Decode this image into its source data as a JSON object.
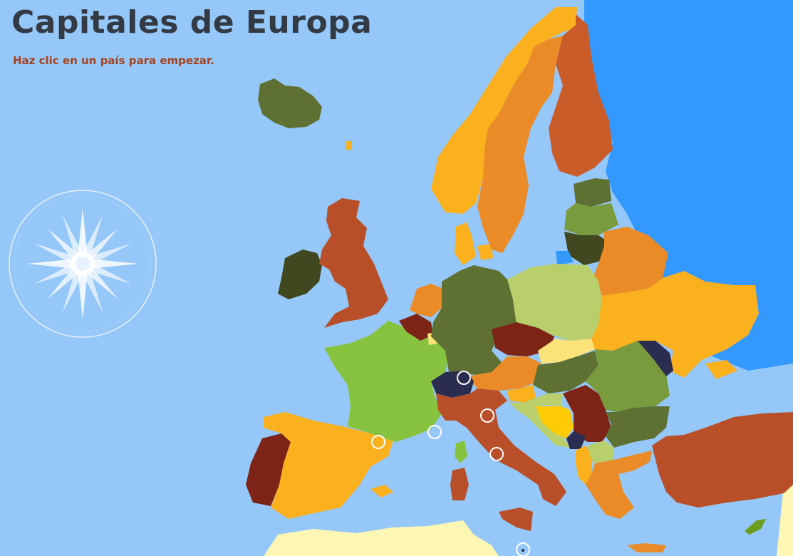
{
  "header": {
    "title": "Capitales de Europa",
    "instruction": "Haz clic en un país para empezar."
  },
  "colors": {
    "sea": "#95c8f8",
    "outer_sea": "#3399ff",
    "non_europe_land": "#fdf6b5",
    "orange_light": "#fbb01e",
    "orange": "#ea8b27",
    "rust": "#b84f28",
    "maroon": "#7e2417",
    "olive": "#5e7133",
    "olive_dark": "#41481f",
    "green_light": "#88c340",
    "green_pale": "#b9cf6c",
    "green_mid": "#7a9a3e",
    "navy": "#2a2d4f",
    "yellow": "#ffcb05",
    "yellow_pale": "#fbe37a"
  },
  "countries": [
    "Islandia",
    "Irlanda",
    "Reino Unido",
    "Portugal",
    "España",
    "Francia",
    "Bélgica",
    "Países Bajos",
    "Luxemburgo",
    "Alemania",
    "Dinamarca",
    "Noruega",
    "Suecia",
    "Finlandia",
    "Estonia",
    "Letonia",
    "Lituania",
    "Bielorrusia",
    "Polonia",
    "Ucrania",
    "Rusia",
    "República Checa",
    "Eslovaquia",
    "Austria",
    "Suiza",
    "Italia",
    "Hungría",
    "Eslovenia",
    "Croacia",
    "Bosnia y Herzegovina",
    "Serbia",
    "Montenegro",
    "Albania",
    "Macedonia",
    "Grecia",
    "Bulgaria",
    "Rumanía",
    "Moldavia",
    "Turquía",
    "Chipre"
  ],
  "microstates": [
    "Liechtenstein",
    "San Marino",
    "Mónaco",
    "Andorra",
    "Vaticano",
    "Malta"
  ],
  "compass": {
    "icon": "compass-rose-icon"
  }
}
